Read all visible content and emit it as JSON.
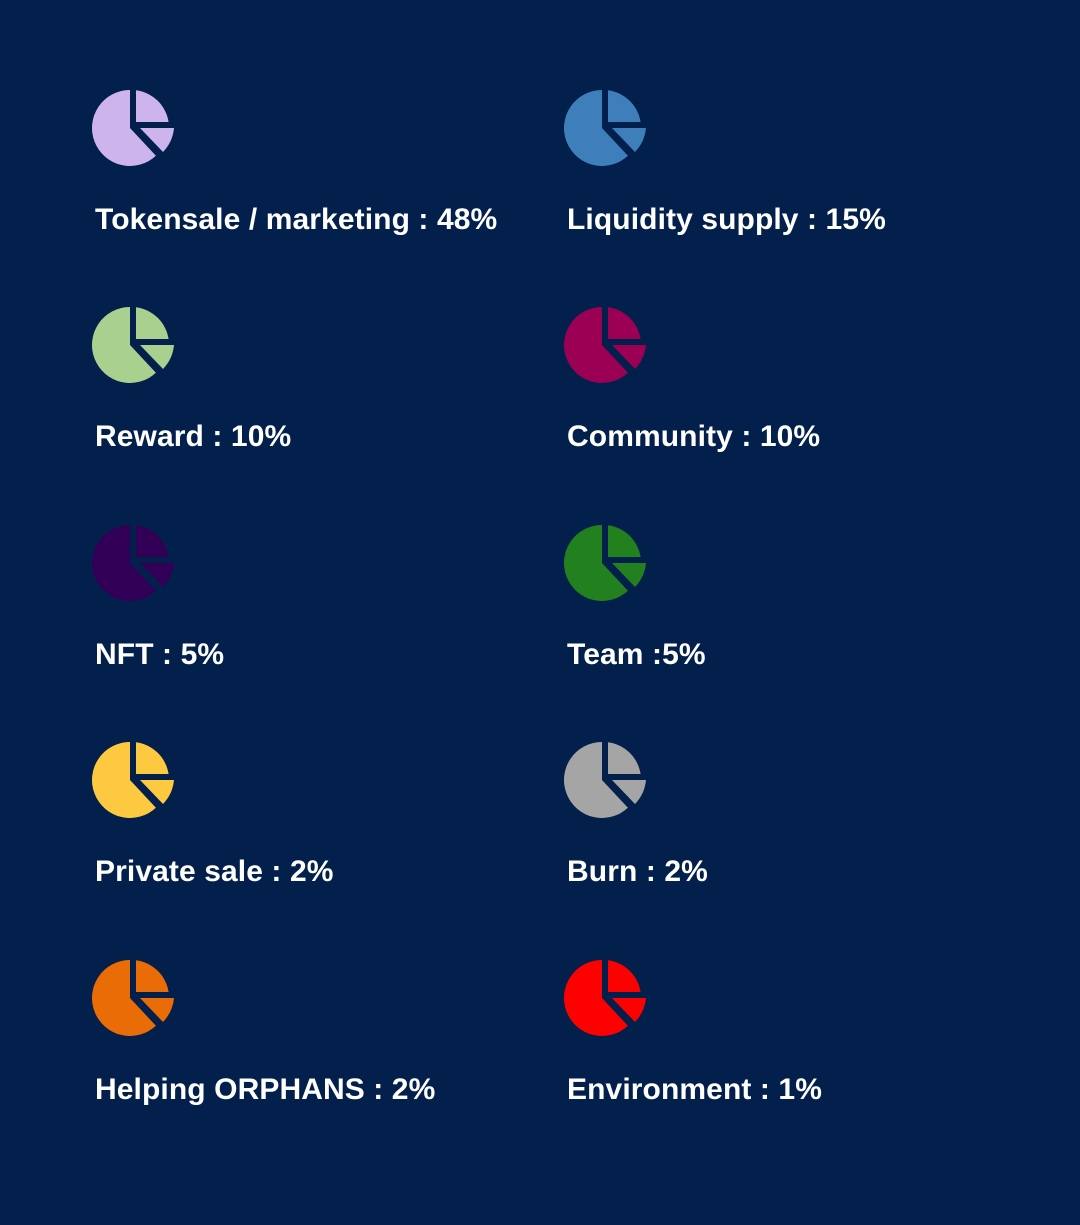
{
  "allocations": [
    {
      "label": "Tokensale / marketing : 48%",
      "color": "#cdb4ec",
      "icon": "pie-chart-icon"
    },
    {
      "label": "Liquidity supply : 15%",
      "color": "#3d7ebb",
      "icon": "pie-chart-icon"
    },
    {
      "label": "Reward : 10%",
      "color": "#a9d08e",
      "icon": "pie-chart-icon"
    },
    {
      "label": "Community : 10%",
      "color": "#9b0055",
      "icon": "pie-chart-icon"
    },
    {
      "label": "NFT : 5%",
      "color": "#310056",
      "icon": "pie-chart-icon"
    },
    {
      "label": "Team :5%",
      "color": "#23801f",
      "icon": "pie-chart-icon"
    },
    {
      "label": "Private sale : 2%",
      "color": "#fcc940",
      "icon": "pie-chart-icon"
    },
    {
      "label": "Burn : 2%",
      "color": "#a5a5a5",
      "icon": "pie-chart-icon"
    },
    {
      "label": "Helping ORPHANS : 2%",
      "color": "#e96c06",
      "icon": "pie-chart-icon"
    },
    {
      "label": "Environment : 1%",
      "color": "#fd0000",
      "icon": "pie-chart-icon"
    }
  ]
}
